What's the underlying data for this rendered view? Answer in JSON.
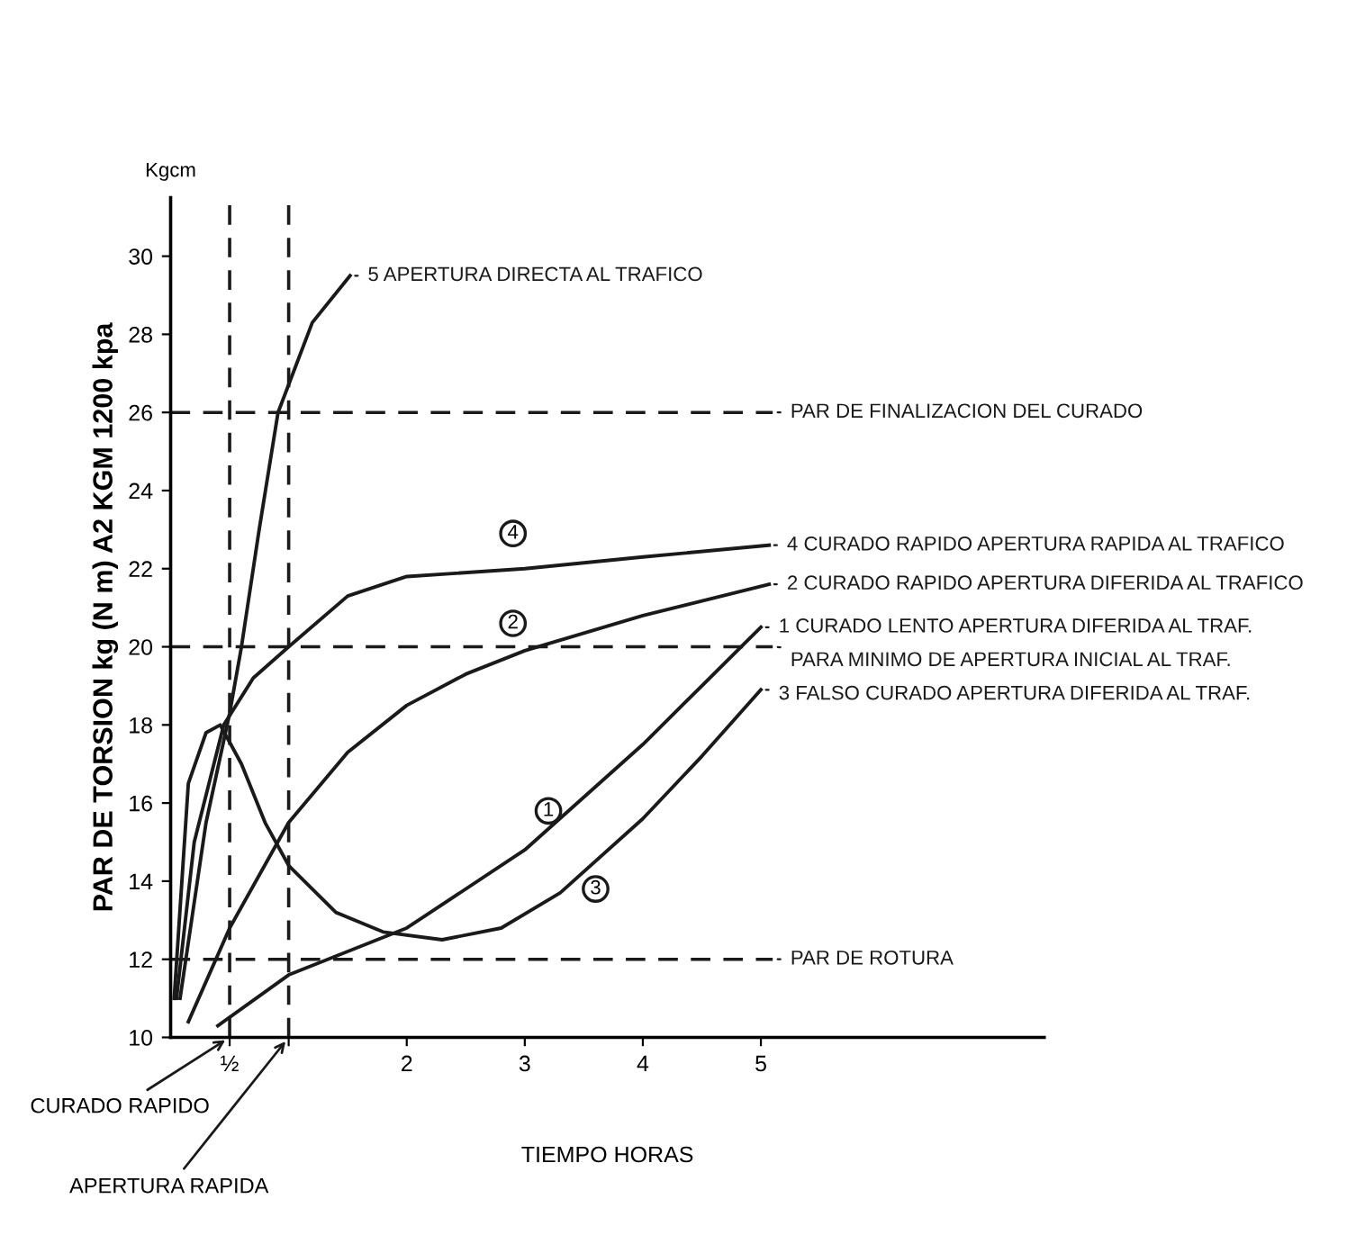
{
  "chart_data": {
    "type": "line",
    "xlabel": "TIEMPO HORAS",
    "ylabel": "PAR DE TORSION kg (N m) A2 KGM 1200 kpa",
    "xlim": [
      0,
      7.4
    ],
    "ylim": [
      10,
      31.5
    ],
    "xticks": [
      {
        "value": 0.5,
        "label": "½"
      },
      {
        "value": 1,
        "label": null
      },
      2,
      3,
      4,
      5
    ],
    "yticks": [
      10,
      12,
      14,
      16,
      18,
      20,
      22,
      24,
      26,
      28,
      30
    ],
    "grid": false,
    "legend": "right",
    "marker": "none",
    "line_style": "solid",
    "series": [
      {
        "name": "5 APERTURA DIRECTA AL TRAFICO",
        "color": "#1a1a1a",
        "x": [
          0.08,
          0.3,
          0.5,
          0.6,
          0.75,
          0.91,
          1.2,
          1.52
        ],
        "values": [
          11,
          15.5,
          18.3,
          20,
          23,
          26,
          28.3,
          29.5
        ]
      },
      {
        "name": "4 CURADO RAPIDO APERTURA RAPIDA AL TRAFICO",
        "color": "#1a1a1a",
        "x": [
          0.05,
          0.2,
          0.45,
          0.7,
          1,
          1.5,
          2,
          3,
          4,
          5.07
        ],
        "values": [
          11,
          15,
          18,
          19.2,
          20,
          21.3,
          21.8,
          22,
          22.3,
          22.6
        ]
      },
      {
        "name": "2 CURADO RAPIDO APERTURA DIFERIDA AL TRAFICO",
        "color": "#1a1a1a",
        "x": [
          0.15,
          0.5,
          1,
          1.5,
          2,
          2.5,
          3,
          4,
          5.07
        ],
        "values": [
          10.4,
          12.8,
          15.5,
          17.3,
          18.5,
          19.3,
          19.9,
          20.8,
          21.6
        ]
      },
      {
        "name": "1 CURADO LENTO APERTURA DIFERIDA AL TRAF.",
        "color": "#1a1a1a",
        "x": [
          0.4,
          1,
          2,
          3,
          4,
          5
        ],
        "values": [
          10.3,
          11.6,
          12.8,
          14.8,
          17.5,
          20.5
        ]
      },
      {
        "name": "3 FALSO CURADO APERTURA DIFERIDA AL TRAF.",
        "color": "#1a1a1a",
        "x": [
          0.03,
          0.15,
          0.3,
          0.42,
          0.6,
          0.8,
          1,
          1.4,
          1.8,
          2.3,
          2.8,
          3.3,
          4,
          4.5,
          5
        ],
        "values": [
          11,
          16.5,
          17.8,
          18,
          17,
          15.5,
          14.4,
          13.2,
          12.7,
          12.5,
          12.8,
          13.7,
          15.6,
          17.2,
          18.9
        ]
      }
    ],
    "ref_lines": [
      {
        "axis": "y",
        "value": 26,
        "label": "PAR DE FINALIZACION DEL CURADO",
        "line_style": "dashed"
      },
      {
        "axis": "y",
        "value": 20,
        "label": "PARA MINIMO DE APERTURA INICIAL AL TRAF.",
        "line_style": "dashed"
      },
      {
        "axis": "y",
        "value": 12,
        "label": "PAR DE ROTURA",
        "line_style": "dashed"
      },
      {
        "axis": "x",
        "value": 0.5,
        "label": "CURADO RAPIDO",
        "line_style": "dashed"
      },
      {
        "axis": "x",
        "value": 1,
        "label": "APERTURA RAPIDA",
        "line_style": "dashed"
      }
    ],
    "annotations": [
      "Kgcm",
      {
        "text": "4",
        "x": 2.9,
        "y": 22.9
      },
      {
        "text": "2",
        "x": 2.9,
        "y": 20.6
      },
      {
        "text": "1",
        "x": 3.2,
        "y": 15.8
      },
      {
        "text": "3",
        "x": 3.6,
        "y": 13.8
      }
    ]
  }
}
